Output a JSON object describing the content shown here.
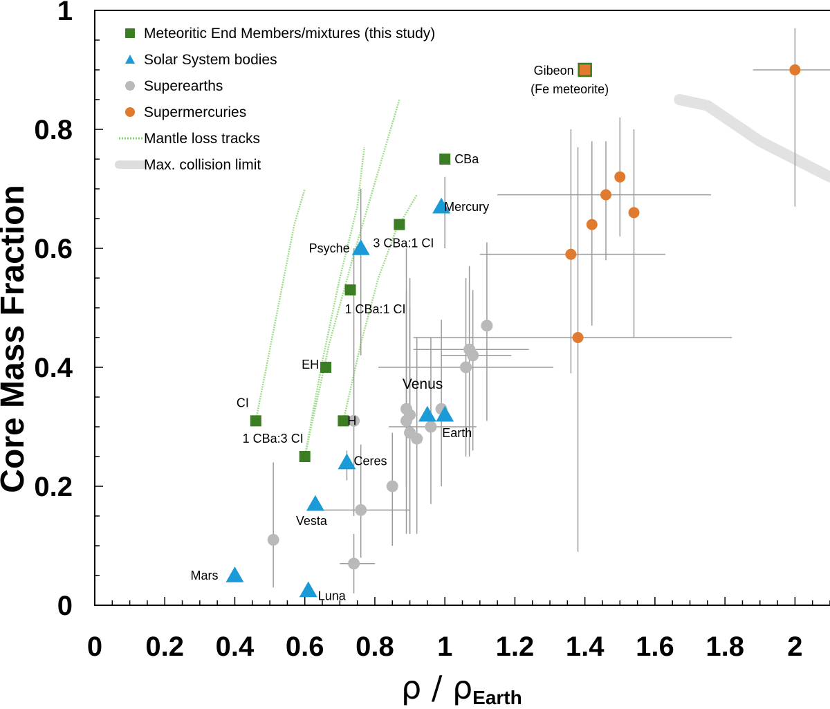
{
  "chart_data": {
    "type": "scatter",
    "xlabel_main": "ρ / ρ",
    "xlabel_sub": "Earth",
    "ylabel": "Core Mass Fraction",
    "xlim": [
      0,
      2.1
    ],
    "ylim": [
      0,
      1
    ],
    "x_ticks": [
      "0",
      "0.2",
      "0.4",
      "0.6",
      "0.8",
      "1",
      "1.2",
      "1.4",
      "1.6",
      "1.8",
      "2"
    ],
    "y_ticks": [
      "0",
      "0.2",
      "0.4",
      "0.6",
      "0.8",
      "1"
    ],
    "legend_position": "top-left",
    "legend": [
      {
        "label": "Meteoritic End Members/mixtures (this study)",
        "marker": "square",
        "color": "#3a7d22"
      },
      {
        "label": "Solar System bodies",
        "marker": "triangle",
        "color": "#1a9ad6"
      },
      {
        "label": "Superearths",
        "marker": "circle",
        "color": "#b9b9b9"
      },
      {
        "label": "Supermercuries",
        "marker": "circle",
        "color": "#e07a2e"
      },
      {
        "label": "Mantle loss tracks",
        "marker": "dotted-line",
        "color": "#7ed06a"
      },
      {
        "label": "Max. collision limit",
        "marker": "thick-line",
        "color": "#dddddd"
      }
    ],
    "colors": {
      "meteoritic": "#3a7d22",
      "solar": "#1a9ad6",
      "superearth": "#b9b9b9",
      "supermercury": "#e07a2e",
      "track": "#9fdc8c",
      "collision": "#e2e2e2",
      "errorbar": "#9a9a9a"
    },
    "meteoritic": [
      {
        "x": 0.46,
        "y": 0.31,
        "label": "CI"
      },
      {
        "x": 0.6,
        "y": 0.25,
        "label": "1 CBa:3 CI"
      },
      {
        "x": 0.66,
        "y": 0.4,
        "label": "EH"
      },
      {
        "x": 0.71,
        "y": 0.31,
        "label": "H"
      },
      {
        "x": 0.73,
        "y": 0.53,
        "label": "1 CBa:1 CI"
      },
      {
        "x": 0.87,
        "y": 0.64,
        "label": "3 CBa:1 CI"
      },
      {
        "x": 1.0,
        "y": 0.75,
        "label": "CBa"
      }
    ],
    "gibeon": {
      "x": 1.4,
      "y": 0.9,
      "label": "Gibeon",
      "label2": "(Fe meteorite)"
    },
    "solar_bodies": [
      {
        "x": 0.4,
        "y": 0.05,
        "label": "Mars"
      },
      {
        "x": 0.61,
        "y": 0.025,
        "label": "Luna"
      },
      {
        "x": 0.63,
        "y": 0.17,
        "label": "Vesta"
      },
      {
        "x": 0.72,
        "y": 0.24,
        "label": "Ceres"
      },
      {
        "x": 0.76,
        "y": 0.6,
        "label": "Psyche"
      },
      {
        "x": 0.95,
        "y": 0.32,
        "label": "Venus"
      },
      {
        "x": 1.0,
        "y": 0.32,
        "label": "Earth"
      },
      {
        "x": 0.99,
        "y": 0.67,
        "label": "Mercury"
      }
    ],
    "superearths": [
      {
        "x": 0.51,
        "y": 0.11,
        "ylo": 0.03,
        "yhi": 0.24
      },
      {
        "x": 0.74,
        "y": 0.07,
        "xlo": 0.7,
        "xhi": 0.8,
        "ylo": 0.02,
        "yhi": 0.12
      },
      {
        "x": 0.76,
        "y": 0.16,
        "xlo": 0.62,
        "xhi": 0.9,
        "ylo": 0.08,
        "yhi": 0.27
      },
      {
        "x": 0.85,
        "y": 0.2,
        "ylo": 0.1,
        "yhi": 0.29
      },
      {
        "x": 0.74,
        "y": 0.31,
        "ylo": 0.15,
        "yhi": 0.6
      },
      {
        "x": 0.89,
        "y": 0.33,
        "ylo": 0.2,
        "yhi": 0.6
      },
      {
        "x": 0.89,
        "y": 0.31,
        "ylo": 0.12,
        "yhi": 0.53
      },
      {
        "x": 0.9,
        "y": 0.32,
        "ylo": 0.12,
        "yhi": 0.55
      },
      {
        "x": 0.9,
        "y": 0.29,
        "ylo": 0.12,
        "yhi": 0.5
      },
      {
        "x": 0.92,
        "y": 0.28,
        "ylo": 0.12,
        "yhi": 0.45
      },
      {
        "x": 0.96,
        "y": 0.3,
        "xlo": 0.84,
        "xhi": 1.09,
        "ylo": 0.17,
        "yhi": 0.45
      },
      {
        "x": 0.99,
        "y": 0.33,
        "ylo": 0.2,
        "yhi": 0.48
      },
      {
        "x": 1.06,
        "y": 0.4,
        "xlo": 0.81,
        "xhi": 1.31,
        "ylo": 0.25,
        "yhi": 0.55
      },
      {
        "x": 1.07,
        "y": 0.43,
        "xlo": 0.91,
        "xhi": 1.24,
        "ylo": 0.25,
        "yhi": 0.57
      },
      {
        "x": 1.08,
        "y": 0.42,
        "xlo": 0.99,
        "xhi": 1.19,
        "ylo": 0.26,
        "yhi": 0.53
      },
      {
        "x": 1.12,
        "y": 0.47,
        "ylo": 0.31,
        "yhi": 0.61
      }
    ],
    "supermercuries": [
      {
        "x": 1.36,
        "y": 0.59,
        "xlo": 1.1,
        "xhi": 1.63,
        "ylo": 0.39,
        "yhi": 0.8
      },
      {
        "x": 1.38,
        "y": 0.45,
        "xlo": 0.91,
        "xhi": 1.82,
        "ylo": 0.09,
        "yhi": 0.77
      },
      {
        "x": 1.42,
        "y": 0.64,
        "ylo": 0.47,
        "yhi": 0.78
      },
      {
        "x": 1.46,
        "y": 0.69,
        "xlo": 1.15,
        "xhi": 1.76,
        "ylo": 0.58,
        "yhi": 0.78
      },
      {
        "x": 1.5,
        "y": 0.72,
        "ylo": 0.62,
        "yhi": 0.82
      },
      {
        "x": 1.54,
        "y": 0.66,
        "ylo": 0.45,
        "yhi": 0.8
      },
      {
        "x": 2.0,
        "y": 0.9,
        "xlo": 1.88,
        "xhi": 2.15,
        "ylo": 0.67,
        "yhi": 0.97
      }
    ],
    "meteoritic_errorbars": [
      {
        "x": 0.76,
        "ylo": 0.42,
        "yhi": 0.7
      },
      {
        "x": 1.0,
        "ylo": 0.6,
        "yhi": 0.72
      },
      {
        "x": 0.72,
        "ylo": 0.21,
        "yhi": 0.26
      }
    ],
    "mantle_tracks": [
      [
        [
          0.46,
          0.31
        ],
        [
          0.5,
          0.43
        ],
        [
          0.54,
          0.55
        ],
        [
          0.57,
          0.64
        ],
        [
          0.6,
          0.7
        ]
      ],
      [
        [
          0.6,
          0.25
        ],
        [
          0.65,
          0.41
        ],
        [
          0.7,
          0.55
        ],
        [
          0.75,
          0.67
        ],
        [
          0.77,
          0.77
        ]
      ],
      [
        [
          0.6,
          0.25
        ],
        [
          0.67,
          0.44
        ],
        [
          0.74,
          0.59
        ],
        [
          0.81,
          0.73
        ],
        [
          0.87,
          0.85
        ]
      ],
      [
        [
          0.71,
          0.31
        ],
        [
          0.76,
          0.44
        ],
        [
          0.81,
          0.55
        ],
        [
          0.86,
          0.63
        ],
        [
          0.92,
          0.69
        ]
      ]
    ],
    "collision_limit": [
      [
        1.67,
        0.85
      ],
      [
        1.75,
        0.84
      ],
      [
        1.9,
        0.78
      ],
      [
        2.1,
        0.72
      ]
    ]
  }
}
